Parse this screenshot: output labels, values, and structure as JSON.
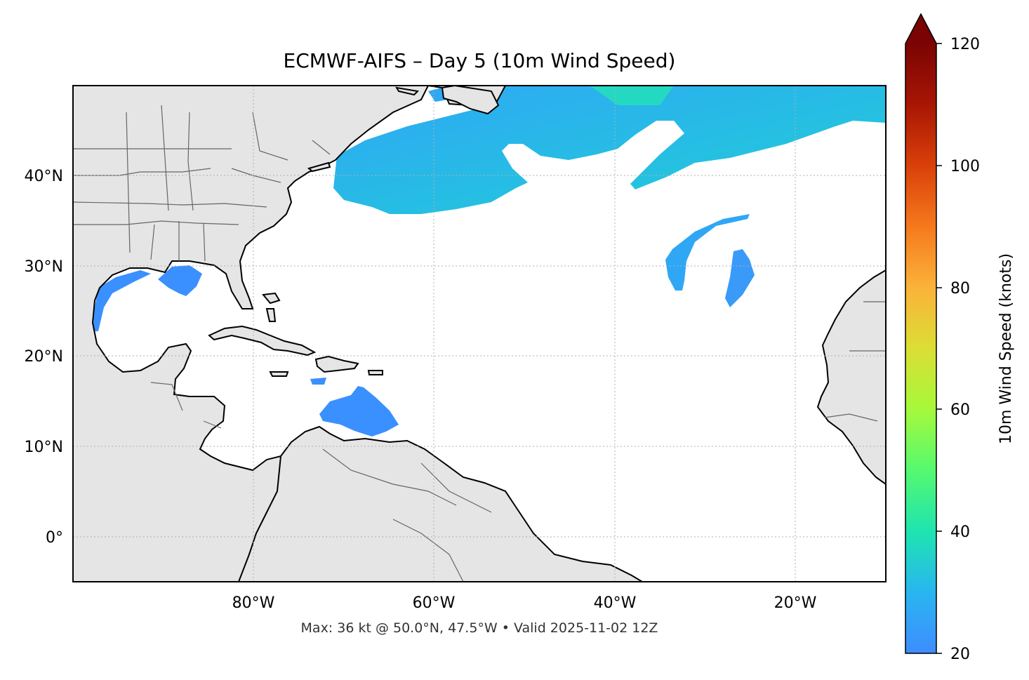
{
  "title": "ECMWF-AIFS – Day 5 (10m Wind Speed)",
  "subtitle": "Max: 36 kt @ 50.0°N, 47.5°W • Valid 2025-11-02 12Z",
  "map": {
    "extent": {
      "lon_min": -100,
      "lon_max": -10,
      "lat_min": -5,
      "lat_max": 50
    },
    "lat_ticks": [
      {
        "value": 40,
        "label": "40°N"
      },
      {
        "value": 30,
        "label": "30°N"
      },
      {
        "value": 20,
        "label": "20°N"
      },
      {
        "value": 10,
        "label": "10°N"
      },
      {
        "value": 0,
        "label": "0°"
      }
    ],
    "lon_ticks": [
      {
        "value": -80,
        "label": "80°W"
      },
      {
        "value": -60,
        "label": "60°W"
      },
      {
        "value": -40,
        "label": "40°W"
      },
      {
        "value": -20,
        "label": "20°W"
      }
    ],
    "gridlines": true,
    "land_color": "#e5e5e5",
    "ocean_color": "#ffffff"
  },
  "colorbar": {
    "label": "10m Wind Speed (knots)",
    "min": 20,
    "max": 120,
    "extend": "max",
    "ticks": [
      "20",
      "40",
      "60",
      "80",
      "100",
      "120"
    ],
    "colormap": "turbo"
  }
}
